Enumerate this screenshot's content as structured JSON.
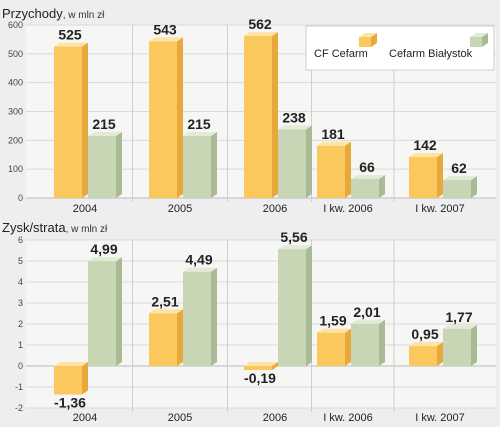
{
  "colors": {
    "series1_face": "#fbc85e",
    "series1_side": "#e7a83c",
    "series1_top": "#fde3a6",
    "series2_face": "#c8d6b6",
    "series2_side": "#a9bb95",
    "series2_top": "#e2ebd6"
  },
  "chart_data": [
    {
      "type": "bar",
      "title": "Przychody",
      "unit": ", w mln zł",
      "categories": [
        "2004",
        "2005",
        "2006",
        "I kw. 2006",
        "I kw. 2007"
      ],
      "series": [
        {
          "name": "CF Cefarm",
          "values": [
            525,
            543,
            562,
            181,
            142
          ],
          "labels": [
            "525",
            "543",
            "562",
            "181",
            "142"
          ]
        },
        {
          "name": "Cefarm Białystok",
          "values": [
            215,
            215,
            238,
            66,
            62
          ],
          "labels": [
            "215",
            "215",
            "238",
            "66",
            "62"
          ]
        }
      ],
      "ylim": [
        0,
        600
      ],
      "yticks": [
        0,
        100,
        200,
        300,
        400,
        500,
        600
      ],
      "grid": true,
      "legend": "top-right"
    },
    {
      "type": "bar",
      "title": "Zysk/strata",
      "unit": ", w mln zł",
      "categories": [
        "2004",
        "2005",
        "2006",
        "I kw. 2006",
        "I kw. 2007"
      ],
      "series": [
        {
          "name": "CF Cefarm",
          "values": [
            -1.36,
            2.51,
            -0.19,
            1.59,
            0.95
          ],
          "labels": [
            "-1,36",
            "2,51",
            "-0,19",
            "1,59",
            "0,95"
          ]
        },
        {
          "name": "Cefarm Białystok",
          "values": [
            4.99,
            4.49,
            5.56,
            2.01,
            1.77
          ],
          "labels": [
            "4,99",
            "4,49",
            "5,56",
            "2,01",
            "1,77"
          ]
        }
      ],
      "ylim": [
        -2,
        6
      ],
      "yticks": [
        -2,
        -1,
        0,
        1,
        2,
        3,
        4,
        5,
        6
      ],
      "grid": true,
      "legend": "none"
    }
  ]
}
